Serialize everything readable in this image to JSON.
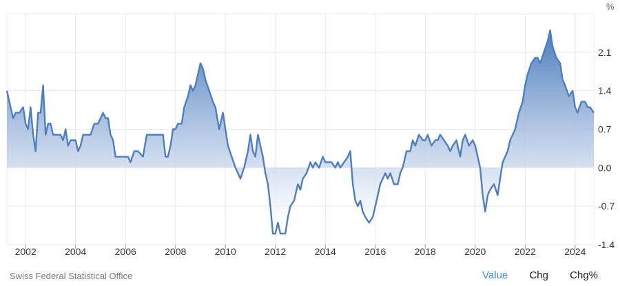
{
  "chart_data": {
    "type": "area",
    "unit_label": "%",
    "source": "Swiss Federal Statistical Office",
    "xlim": [
      2001.25,
      2024.75
    ],
    "ylim": [
      -1.4,
      2.8
    ],
    "x_ticks": [
      2002,
      2004,
      2006,
      2008,
      2010,
      2012,
      2014,
      2016,
      2018,
      2020,
      2022,
      2024
    ],
    "y_ticks": [
      2.1,
      1.4,
      0.7,
      0.0,
      -0.7,
      -1.4
    ],
    "y_tick_labels": [
      "2.1",
      "1.4",
      "0.7",
      "0.0",
      "-0.7",
      "-1.4"
    ],
    "grid": true,
    "line_color": "#4e7ebb",
    "x": [
      2001.25,
      2001.4,
      2001.5,
      2001.6,
      2001.75,
      2001.9,
      2002.0,
      2002.1,
      2002.2,
      2002.3,
      2002.4,
      2002.5,
      2002.6,
      2002.7,
      2002.8,
      2002.9,
      2003.0,
      2003.1,
      2003.2,
      2003.3,
      2003.4,
      2003.5,
      2003.6,
      2003.7,
      2003.8,
      2003.9,
      2004.0,
      2004.1,
      2004.2,
      2004.3,
      2004.4,
      2004.6,
      2004.75,
      2004.9,
      2005.0,
      2005.1,
      2005.2,
      2005.3,
      2005.4,
      2005.5,
      2005.6,
      2005.75,
      2005.9,
      2006.0,
      2006.1,
      2006.2,
      2006.35,
      2006.5,
      2006.7,
      2006.85,
      2007.0,
      2007.1,
      2007.2,
      2007.35,
      2007.5,
      2007.6,
      2007.7,
      2007.8,
      2007.9,
      2008.0,
      2008.1,
      2008.25,
      2008.35,
      2008.5,
      2008.6,
      2008.7,
      2008.8,
      2008.9,
      2009.0,
      2009.1,
      2009.2,
      2009.35,
      2009.5,
      2009.6,
      2009.75,
      2009.9,
      2010.0,
      2010.1,
      2010.25,
      2010.4,
      2010.5,
      2010.6,
      2010.75,
      2010.9,
      2011.0,
      2011.1,
      2011.2,
      2011.3,
      2011.4,
      2011.5,
      2011.6,
      2011.7,
      2011.8,
      2011.9,
      2012.0,
      2012.1,
      2012.2,
      2012.3,
      2012.4,
      2012.5,
      2012.6,
      2012.75,
      2012.9,
      2013.0,
      2013.1,
      2013.25,
      2013.4,
      2013.5,
      2013.6,
      2013.75,
      2013.9,
      2014.0,
      2014.1,
      2014.25,
      2014.4,
      2014.5,
      2014.6,
      2014.75,
      2014.9,
      2015.0,
      2015.1,
      2015.2,
      2015.3,
      2015.4,
      2015.5,
      2015.6,
      2015.75,
      2015.9,
      2016.0,
      2016.1,
      2016.2,
      2016.3,
      2016.4,
      2016.5,
      2016.6,
      2016.75,
      2016.9,
      2017.0,
      2017.1,
      2017.25,
      2017.4,
      2017.5,
      2017.6,
      2017.75,
      2017.9,
      2018.0,
      2018.1,
      2018.25,
      2018.4,
      2018.5,
      2018.6,
      2018.75,
      2018.9,
      2019.0,
      2019.1,
      2019.25,
      2019.4,
      2019.5,
      2019.6,
      2019.75,
      2019.9,
      2020.0,
      2020.1,
      2020.2,
      2020.3,
      2020.4,
      2020.5,
      2020.6,
      2020.75,
      2020.9,
      2021.0,
      2021.1,
      2021.2,
      2021.3,
      2021.4,
      2021.5,
      2021.6,
      2021.75,
      2021.9,
      2022.0,
      2022.1,
      2022.25,
      2022.4,
      2022.5,
      2022.6,
      2022.75,
      2022.9,
      2023.0,
      2023.1,
      2023.25,
      2023.4,
      2023.5,
      2023.6,
      2023.75,
      2023.9,
      2024.0,
      2024.1,
      2024.25,
      2024.4,
      2024.5,
      2024.6,
      2024.75
    ],
    "y": [
      1.4,
      1.1,
      0.9,
      1.0,
      1.0,
      1.1,
      0.8,
      0.7,
      1.1,
      0.6,
      0.3,
      1.0,
      1.0,
      1.5,
      0.6,
      0.8,
      0.8,
      0.6,
      0.6,
      0.6,
      0.6,
      0.5,
      0.7,
      0.4,
      0.5,
      0.5,
      0.5,
      0.3,
      0.4,
      0.6,
      0.6,
      0.6,
      0.8,
      0.8,
      0.9,
      1.0,
      0.9,
      0.9,
      0.6,
      0.5,
      0.2,
      0.2,
      0.2,
      0.2,
      0.2,
      0.1,
      0.3,
      0.3,
      0.2,
      0.6,
      0.6,
      0.6,
      0.6,
      0.6,
      0.6,
      0.2,
      0.2,
      0.4,
      0.7,
      0.7,
      0.8,
      0.8,
      1.1,
      1.3,
      1.5,
      1.4,
      1.5,
      1.7,
      1.9,
      1.8,
      1.6,
      1.4,
      1.2,
      1.1,
      0.7,
      1.0,
      0.7,
      0.4,
      0.2,
      0.0,
      -0.1,
      -0.2,
      0.0,
      0.3,
      0.6,
      0.3,
      0.2,
      0.6,
      0.4,
      0.2,
      -0.1,
      -0.3,
      -0.7,
      -1.2,
      -1.2,
      -1.0,
      -1.2,
      -1.2,
      -1.2,
      -0.9,
      -0.7,
      -0.6,
      -0.3,
      -0.4,
      -0.2,
      -0.1,
      0.1,
      0.0,
      0.1,
      0.0,
      0.2,
      0.1,
      0.1,
      0.1,
      0.0,
      0.1,
      0.0,
      0.1,
      0.2,
      0.3,
      -0.3,
      -0.6,
      -0.7,
      -0.6,
      -0.8,
      -0.9,
      -1.0,
      -0.9,
      -0.7,
      -0.5,
      -0.3,
      -0.2,
      -0.1,
      -0.2,
      -0.1,
      -0.3,
      -0.3,
      -0.1,
      0.0,
      0.3,
      0.3,
      0.5,
      0.4,
      0.6,
      0.5,
      0.5,
      0.6,
      0.4,
      0.5,
      0.5,
      0.6,
      0.5,
      0.4,
      0.3,
      0.4,
      0.5,
      0.2,
      0.5,
      0.6,
      0.4,
      0.5,
      0.4,
      0.2,
      0.0,
      -0.5,
      -0.8,
      -0.5,
      -0.4,
      -0.3,
      -0.5,
      -0.2,
      0.1,
      0.2,
      0.3,
      0.5,
      0.6,
      0.7,
      1.0,
      1.2,
      1.5,
      1.7,
      1.9,
      2.0,
      2.0,
      1.9,
      2.1,
      2.3,
      2.5,
      2.2,
      2.0,
      1.9,
      1.6,
      1.5,
      1.3,
      1.4,
      1.1,
      1.0,
      1.2,
      1.2,
      1.1,
      1.1,
      1.0
    ]
  },
  "footer": {
    "source": "Swiss Federal Statistical Office",
    "tabs": [
      "Value",
      "Chg",
      "Chg%"
    ]
  }
}
